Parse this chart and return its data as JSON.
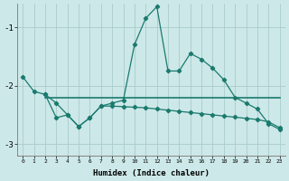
{
  "xlabel": "Humidex (Indice chaleur)",
  "background_color": "#cde8e8",
  "line_color": "#1a7a6e",
  "grid_color": "#aacccc",
  "main_line_x": [
    0,
    1,
    2,
    3,
    4,
    5,
    6,
    7,
    8,
    9,
    10,
    11,
    12,
    13,
    14,
    15,
    16,
    17,
    18,
    19,
    20,
    21,
    22,
    23
  ],
  "main_line_y": [
    -1.85,
    -2.1,
    -2.15,
    -2.55,
    -2.5,
    -2.7,
    -2.55,
    -2.35,
    -2.3,
    -2.25,
    -1.3,
    -0.85,
    -0.65,
    -1.75,
    -1.75,
    -1.45,
    -1.55,
    -1.7,
    -1.9,
    -2.2,
    -2.3,
    -2.4,
    -2.65,
    -2.75
  ],
  "flat_line_x": [
    2,
    23
  ],
  "flat_line_y": [
    -2.2,
    -2.2
  ],
  "descend_line_x": [
    2,
    3,
    4,
    5,
    6,
    7,
    8,
    9,
    10,
    11,
    12,
    13,
    14,
    15,
    16,
    17,
    18,
    19,
    20,
    21,
    22,
    23
  ],
  "descend_line_y": [
    -2.15,
    -2.3,
    -2.5,
    -2.7,
    -2.55,
    -2.35,
    -2.35,
    -2.36,
    -2.37,
    -2.38,
    -2.4,
    -2.42,
    -2.44,
    -2.46,
    -2.48,
    -2.5,
    -2.52,
    -2.54,
    -2.56,
    -2.58,
    -2.62,
    -2.72
  ],
  "ylim": [
    -3.2,
    -0.6
  ],
  "xlim": [
    -0.5,
    23.5
  ],
  "yticks": [
    -3.0,
    -2.0,
    -1.0
  ],
  "xticks": [
    0,
    1,
    2,
    3,
    4,
    5,
    6,
    7,
    8,
    9,
    10,
    11,
    12,
    13,
    14,
    15,
    16,
    17,
    18,
    19,
    20,
    21,
    22,
    23
  ]
}
